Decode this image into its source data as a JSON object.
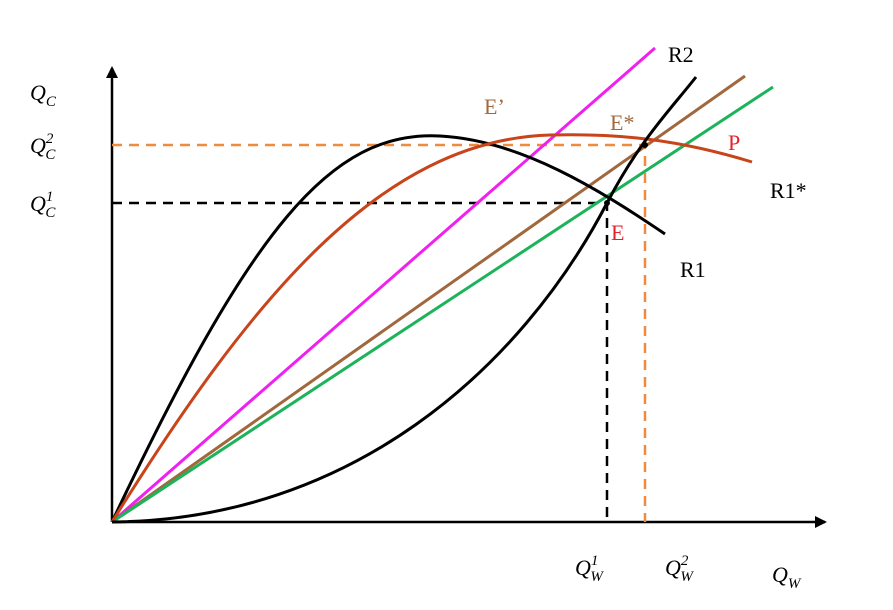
{
  "axes": {
    "y": {
      "base": "Q",
      "sub": "C"
    },
    "x": {
      "base": "Q",
      "sub": "W"
    }
  },
  "y_ticks": [
    {
      "base": "Q",
      "sub": "C",
      "sup": "2"
    },
    {
      "base": "Q",
      "sub": "C",
      "sup": "1"
    }
  ],
  "x_ticks": [
    {
      "base": "Q",
      "sub": "W",
      "sup": "1"
    },
    {
      "base": "Q",
      "sub": "W",
      "sup": "2"
    }
  ],
  "labels": {
    "r2": "R2",
    "r1_star": "R1*",
    "r1": "R1",
    "p": "P",
    "e": "E",
    "e_star": "E*",
    "e_prime": "E’"
  }
}
